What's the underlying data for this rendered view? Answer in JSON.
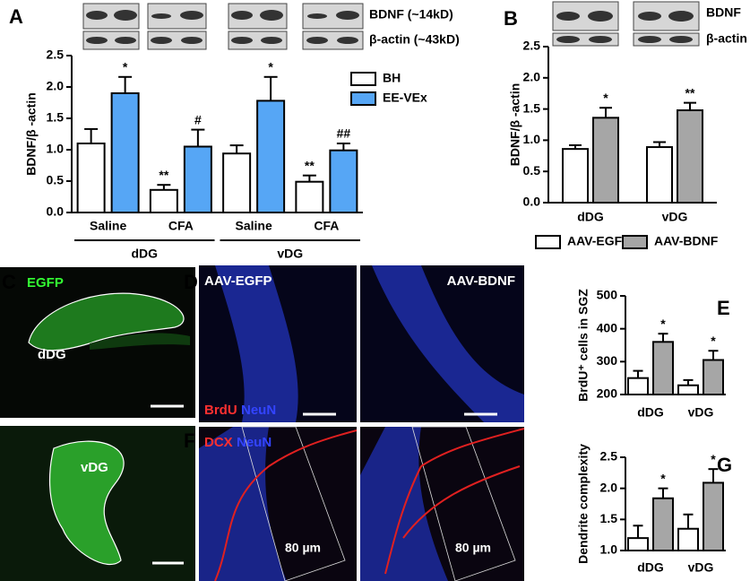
{
  "blots": {
    "a": [
      "BDNF  (~14kD)",
      "β-actin (~43kD)"
    ],
    "b": [
      "BDNF",
      "β-actin"
    ]
  },
  "images": {
    "c": {
      "panel": "C",
      "labels": [
        "EGFP",
        "dDG",
        "vDG"
      ]
    },
    "d": {
      "panel": "D",
      "labels": [
        "AAV-EGFP",
        "AAV-BDNF",
        "BrdU",
        "NeuN"
      ]
    },
    "f": {
      "panel": "F",
      "labels": [
        "DCX",
        "NeuN",
        "80 µm",
        "80 µm"
      ]
    }
  },
  "chart_data": [
    {
      "panel": "A",
      "type": "bar",
      "ylabel": "BDNF/β -actin",
      "categories": [
        "Saline",
        "CFA",
        "Saline",
        "CFA"
      ],
      "group_labels": [
        "dDG",
        "vDG"
      ],
      "series": [
        {
          "name": "BH",
          "color": "#ffffff",
          "values": [
            1.1,
            0.36,
            0.94,
            0.49
          ],
          "errors": [
            0.23,
            0.08,
            0.13,
            0.1
          ],
          "annotations": [
            null,
            "**",
            null,
            "**"
          ]
        },
        {
          "name": "EE-VEx",
          "color": "#56a6f5",
          "values": [
            1.9,
            1.05,
            1.78,
            0.99
          ],
          "errors": [
            0.26,
            0.27,
            0.38,
            0.11
          ],
          "annotations": [
            "*",
            "#",
            "*",
            "##"
          ]
        }
      ],
      "ylim": [
        0,
        2.5
      ],
      "yticks": [
        {
          "value": 0,
          "label": "0.0"
        },
        {
          "value": 0.5,
          "label": "0.5"
        },
        {
          "value": 1,
          "label": "1.0"
        },
        {
          "value": 1.5,
          "label": "1.5"
        },
        {
          "value": 2,
          "label": "2.0"
        },
        {
          "value": 2.5,
          "label": "2.5"
        }
      ],
      "legend": "right"
    },
    {
      "panel": "B",
      "type": "bar",
      "ylabel": "BDNF/β -actin",
      "categories": [
        "dDG",
        "vDG"
      ],
      "series": [
        {
          "name": "AAV-EGFP",
          "color": "#ffffff",
          "values": [
            0.86,
            0.89
          ],
          "errors": [
            0.06,
            0.08
          ],
          "annotations": [
            null,
            null
          ]
        },
        {
          "name": "AAV-BDNF",
          "color": "#a6a6a6",
          "values": [
            1.36,
            1.48
          ],
          "errors": [
            0.16,
            0.12
          ],
          "annotations": [
            "*",
            "**"
          ]
        }
      ],
      "ylim": [
        0,
        2.5
      ],
      "yticks": [
        {
          "value": 0,
          "label": "0.0"
        },
        {
          "value": 0.5,
          "label": "0.5"
        },
        {
          "value": 1,
          "label": "1.0"
        },
        {
          "value": 1.5,
          "label": "1.5"
        },
        {
          "value": 2,
          "label": "2.0"
        },
        {
          "value": 2.5,
          "label": "2.5"
        }
      ],
      "legend": "bottom"
    },
    {
      "panel": "E",
      "type": "bar",
      "ylabel": "BrdU⁺ cells in SGZ",
      "categories": [
        "dDG",
        "vDG"
      ],
      "series": [
        {
          "color": "#ffffff",
          "values": [
            250,
            228
          ],
          "errors": [
            22,
            16
          ],
          "annotations": [
            null,
            null
          ]
        },
        {
          "color": "#a6a6a6",
          "values": [
            360,
            305
          ],
          "errors": [
            25,
            28
          ],
          "annotations": [
            "*",
            "*"
          ]
        }
      ],
      "ylim": [
        200,
        500
      ],
      "yticks": [
        200,
        300,
        400,
        500
      ]
    },
    {
      "panel": "G",
      "type": "bar",
      "ylabel": "Dendrite complexity",
      "categories": [
        "dDG",
        "vDG"
      ],
      "series": [
        {
          "color": "#ffffff",
          "values": [
            1.2,
            1.35
          ],
          "errors": [
            0.2,
            0.23
          ],
          "annotations": [
            null,
            null
          ]
        },
        {
          "color": "#a6a6a6",
          "values": [
            1.84,
            2.09
          ],
          "errors": [
            0.16,
            0.22
          ],
          "annotations": [
            "*",
            "*"
          ]
        }
      ],
      "ylim": [
        1,
        2.5
      ],
      "yticks": [
        {
          "value": 1,
          "label": "1.0"
        },
        {
          "value": 1.5,
          "label": "1.5"
        },
        {
          "value": 2,
          "label": "2.0"
        },
        {
          "value": 2.5,
          "label": "2.5"
        }
      ]
    }
  ]
}
